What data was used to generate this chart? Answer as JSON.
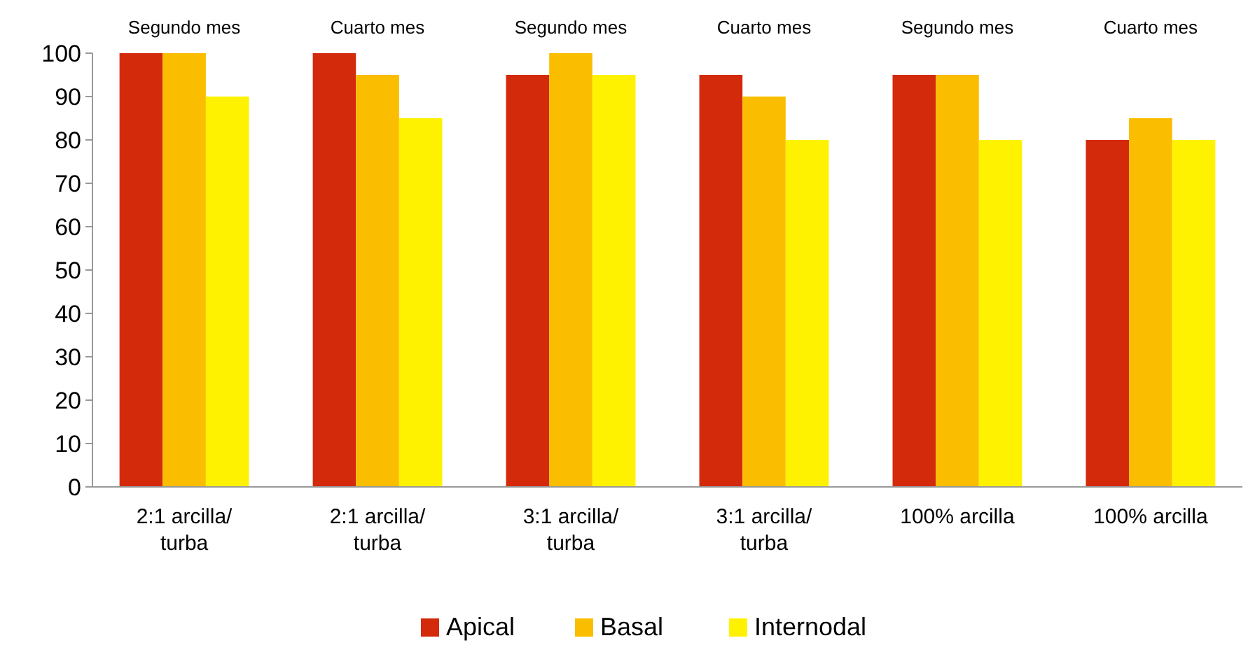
{
  "chart_data": {
    "type": "bar",
    "categories": [
      "2:1 arcilla/ turba",
      "2:1 arcilla/ turba",
      "3:1 arcilla/ turba",
      "3:1 arcilla/ turba",
      "100% arcilla",
      "100% arcilla"
    ],
    "series": [
      {
        "name": "Apical",
        "color": "#d42a0c",
        "values": [
          100,
          100,
          95,
          95,
          95,
          80
        ]
      },
      {
        "name": "Basal",
        "color": "#fbbd00",
        "values": [
          100,
          95,
          100,
          90,
          95,
          85
        ]
      },
      {
        "name": "Internodal",
        "color": "#fff200",
        "values": [
          90,
          85,
          95,
          80,
          80,
          80
        ]
      }
    ],
    "ylim": [
      0,
      100
    ],
    "yticks": [
      0,
      10,
      20,
      30,
      40,
      50,
      60,
      70,
      80,
      90,
      100
    ],
    "grid": false,
    "legend": "bottom",
    "annotations": [
      "Segundo mes",
      "Cuarto mes",
      "Segundo mes",
      "Cuarto mes",
      "Segundo mes",
      "Cuarto mes"
    ]
  }
}
